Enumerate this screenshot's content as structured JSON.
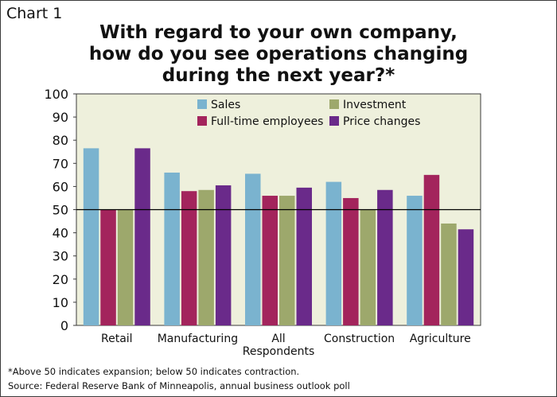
{
  "chart_label": "Chart 1",
  "title_lines": [
    "With regard to your own company,",
    "how do you see operations changing",
    "during the next year?*"
  ],
  "footnote": "*Above 50 indicates expansion; below 50 indicates contraction.",
  "source": "Source: Federal Reserve Bank of Minneapolis, annual business outlook poll",
  "colors": {
    "plot_background": "#eef0dc",
    "reference_line": "#000000"
  },
  "chart_data": {
    "type": "bar",
    "title": "With regard to your own company, how do you see operations changing during the next year?*",
    "categories": [
      "Retail",
      "Manufacturing",
      "All Respondents",
      "Construction",
      "Agriculture"
    ],
    "category_label_lines": [
      [
        "Retail"
      ],
      [
        "Manufacturing"
      ],
      [
        "All",
        "Respondents"
      ],
      [
        "Construction"
      ],
      [
        "Agriculture"
      ]
    ],
    "series": [
      {
        "name": "Sales",
        "color": "#7ab3cf",
        "values": [
          76.5,
          66,
          65.5,
          62,
          56
        ]
      },
      {
        "name": "Full-time employees",
        "color": "#a3245c",
        "values": [
          50,
          58,
          56,
          55,
          65
        ]
      },
      {
        "name": "Investment",
        "color": "#9da86c",
        "values": [
          50,
          58.5,
          56,
          50,
          44
        ]
      },
      {
        "name": "Price changes",
        "color": "#6a2a8a",
        "values": [
          76.5,
          60.5,
          59.5,
          58.5,
          41.5
        ]
      }
    ],
    "ylim": [
      0,
      100
    ],
    "yticks": [
      0,
      10,
      20,
      30,
      40,
      50,
      60,
      70,
      80,
      90,
      100
    ],
    "reference_line": 50,
    "xlabel": "",
    "ylabel": "",
    "legend_placement": "top",
    "grid": false
  }
}
